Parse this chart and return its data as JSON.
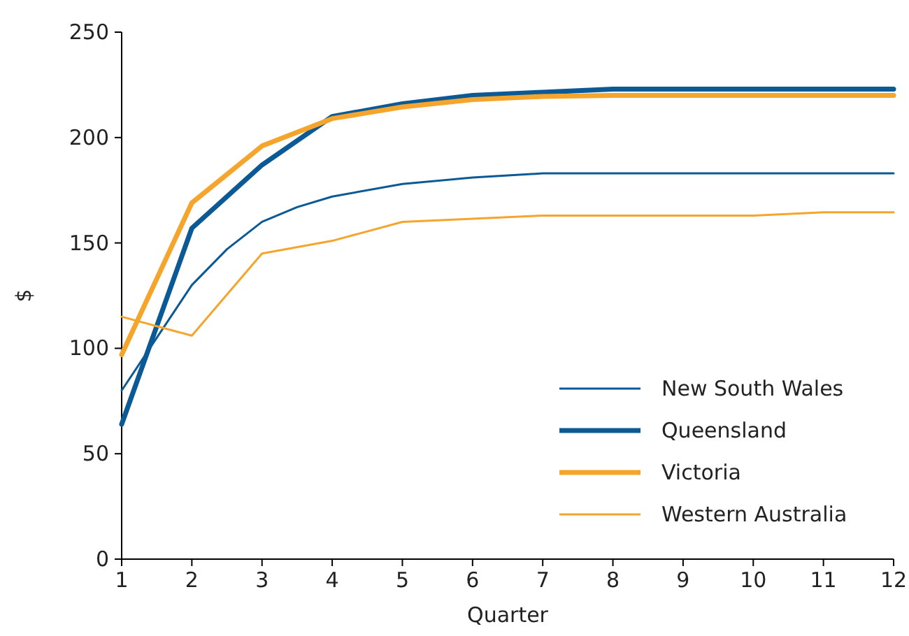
{
  "chart_data": {
    "type": "line",
    "xlabel": "Quarter",
    "ylabel": "$",
    "xlim": [
      1,
      12
    ],
    "xticks": [
      1,
      2,
      3,
      4,
      5,
      6,
      7,
      8,
      9,
      10,
      11,
      12
    ],
    "ylim": [
      0,
      250
    ],
    "yticks": [
      0,
      50,
      100,
      150,
      200,
      250
    ],
    "grid": false,
    "legend": "bottom right",
    "marker": "none",
    "line_style": "solid",
    "series": [
      {
        "name": "New South Wales",
        "color": "#0b5a96",
        "x": [
          1,
          2,
          2.5,
          3,
          3.5,
          4,
          5,
          6,
          7,
          8,
          9,
          10,
          11,
          12
        ],
        "values": [
          80,
          130,
          147,
          160,
          167,
          172,
          178,
          181,
          183,
          183,
          183,
          183,
          183,
          183
        ]
      },
      {
        "name": "Queensland",
        "color": "#0b5a96",
        "x": [
          1,
          2,
          3,
          4,
          5,
          6,
          7,
          8,
          9,
          10,
          11,
          12
        ],
        "values": [
          64,
          157,
          187,
          210,
          216,
          220,
          221.5,
          223,
          223,
          223,
          223,
          223
        ]
      },
      {
        "name": "Victoria",
        "color": "#f5a52c",
        "x": [
          1,
          2,
          3,
          4,
          5,
          6,
          7,
          8,
          9,
          10,
          11,
          12
        ],
        "values": [
          97,
          169,
          196,
          209,
          214.5,
          218,
          219.5,
          220,
          220,
          220,
          220,
          220
        ]
      },
      {
        "name": "Western Australia",
        "color": "#f5a52c",
        "x": [
          1,
          2,
          3,
          4,
          5,
          6,
          7,
          8,
          9,
          10,
          11,
          12
        ],
        "values": [
          115,
          106,
          145,
          151,
          160,
          161.5,
          163,
          163,
          163,
          163,
          164.5,
          164.5
        ]
      }
    ]
  }
}
